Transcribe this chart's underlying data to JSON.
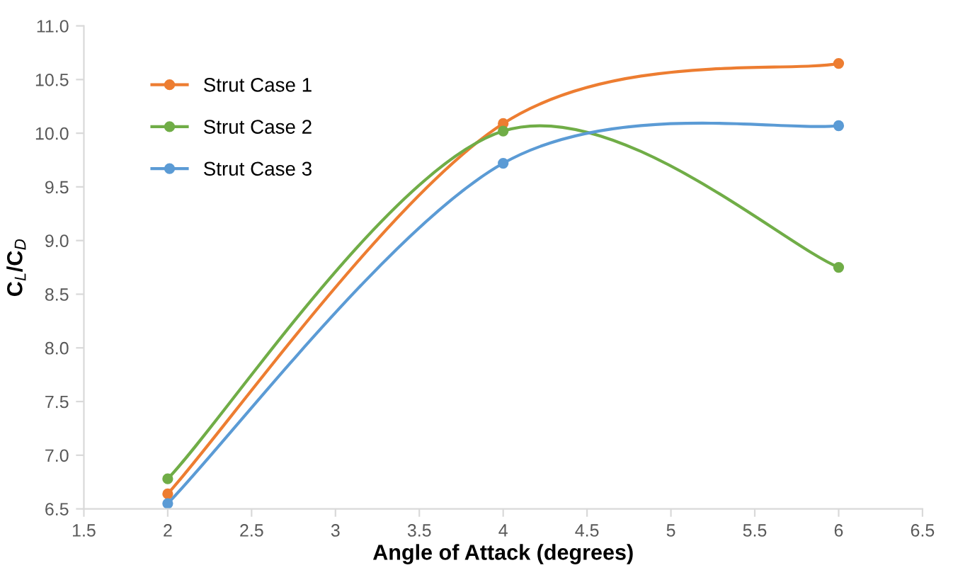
{
  "chart_data": {
    "type": "line",
    "xlabel": "Angle of Attack (degrees)",
    "ylabel": "C$_{L}$/C$_{D}$",
    "x": [
      2,
      4,
      6
    ],
    "series": [
      {
        "name": "Strut Case 1",
        "color": "#ed7d31",
        "values": [
          6.64,
          10.09,
          10.65
        ]
      },
      {
        "name": "Strut Case 2",
        "color": "#70ad47",
        "values": [
          6.78,
          10.02,
          8.75
        ]
      },
      {
        "name": "Strut Case 3",
        "color": "#5b9bd5",
        "values": [
          6.55,
          9.72,
          10.07
        ]
      }
    ],
    "xlim": [
      1.5,
      6.5
    ],
    "xticks": [
      1.5,
      2,
      2.5,
      3,
      3.5,
      4,
      4.5,
      5,
      5.5,
      6,
      6.5
    ],
    "ylim": [
      6.5,
      11.0
    ],
    "yticks": [
      {
        "value": 6.5,
        "label": "6.5"
      },
      {
        "value": 7.0,
        "label": "7.0"
      },
      {
        "value": 7.5,
        "label": "7.5"
      },
      {
        "value": 8.0,
        "label": "8.0"
      },
      {
        "value": 8.5,
        "label": "8.5"
      },
      {
        "value": 9.0,
        "label": "9.0"
      },
      {
        "value": 9.5,
        "label": "9.5"
      },
      {
        "value": 10.0,
        "label": "10.0"
      },
      {
        "value": 10.5,
        "label": "10.5"
      },
      {
        "value": 11.0,
        "label": "11.0"
      }
    ],
    "grid": false,
    "legend": "top left",
    "marker": "circle",
    "line_style": "solid"
  }
}
